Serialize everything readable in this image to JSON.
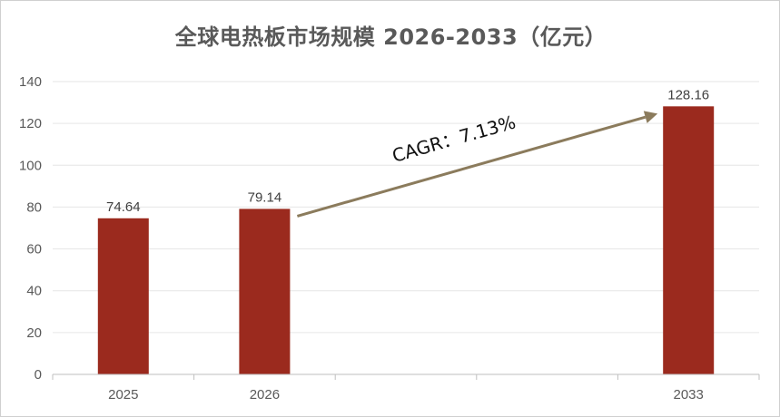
{
  "chart_data": {
    "type": "bar",
    "title": "全球电热板市场规模 2026-2033（亿元）",
    "categories": [
      "2025",
      "2026",
      "2033"
    ],
    "values": [
      74.64,
      79.14,
      128.16
    ],
    "data_labels": [
      "74.64",
      "79.14",
      "128.16"
    ],
    "ylim": [
      0,
      140
    ],
    "yticks": [
      0,
      20,
      40,
      60,
      80,
      100,
      120,
      140
    ],
    "grid": true,
    "bar_color": "#9B2A1E",
    "annotation": {
      "text": "CAGR：7.13%",
      "arrow_from": "2026",
      "arrow_to": "2033",
      "arrow_color": "#8B7B5C"
    }
  }
}
